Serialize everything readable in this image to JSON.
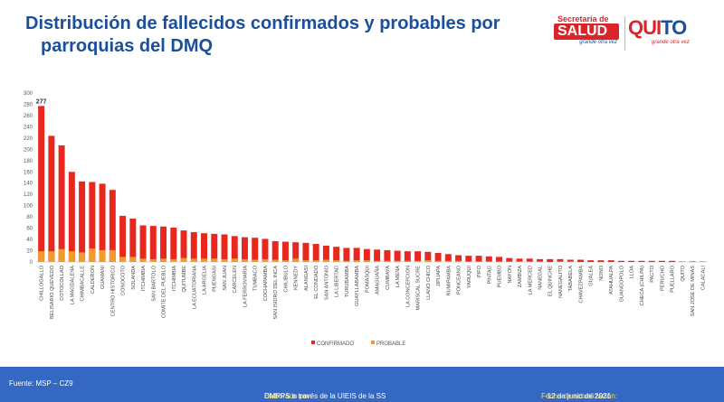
{
  "title_line1": "Distribución de fallecidos confirmados y probables por",
  "title_line2": "parroquias del DMQ",
  "logos": {
    "salud_small": "Secretaría de",
    "salud_big": "SALUD",
    "salud_tag": "grande otra vez",
    "quito_a": "QUI",
    "quito_b": "TO",
    "quito_tag": "grande otra vez"
  },
  "colors": {
    "confirmado": "#e8281e",
    "probable": "#f39a2b",
    "title": "#1b4f9c",
    "footer": "#3468c2"
  },
  "footer": {
    "source": "Fuente: MSP – CZ9",
    "elab_label": "Elaborado por:",
    "elab_value": "DMPPS  a través de la UIEIS  de la SS",
    "date_label": "Fecha de actualización:",
    "date_value": "12 de junio de 2021"
  },
  "chart_data": {
    "type": "bar",
    "ylim": [
      0,
      300
    ],
    "yticks": [
      0,
      20,
      40,
      60,
      80,
      100,
      120,
      140,
      160,
      180,
      200,
      220,
      240,
      260,
      280,
      300
    ],
    "grid": false,
    "legend_position": "bottom-center",
    "annotation": "277",
    "categories": [
      "CHILLOGALLO",
      "BELISARIO QUEVEDO",
      "COTOCOLLAO",
      "LA MAGDALENA",
      "CHIMBACALLE",
      "CALDERON",
      "GUAMANI",
      "CENTRO HISTORICO",
      "CONOCOTO",
      "SOLANDA",
      "ITCHIMBIA",
      "SAN BARTOLO",
      "COMITE DEL PUEBLO",
      "ITCHIMBIA",
      "QUITUMBE",
      "LA ECUATORIANA",
      "LA ARGELIA",
      "PUENGASI",
      "SAN JUAN",
      "CARCELEN",
      "LA FERROVIARIA",
      "TUMBACO",
      "COCHAPAMBA",
      "SAN ISIDRO DEL INCA",
      "CHILIBULO",
      "KENNEDY",
      "ALANGASI",
      "EL CONDADO",
      "SAN ANTONIO",
      "LA LIBERTAD",
      "TURUBAMBA",
      "GUAYLLABAMBA",
      "POMASQUI",
      "AMAGUAÑA",
      "CUMBAYA",
      "LA MENA",
      "LA CONCEPCION",
      "MARISCAL SUCRE",
      "LLANO CHICO",
      "JIPIJAPA",
      "RUMIPAMBA",
      "PONCEANO",
      "YARUQUI",
      "PIFO",
      "PINTAG",
      "PUEMBO",
      "NAYON",
      "ZAMBIZA",
      "LA MERCED",
      "NANEGAL",
      "EL QUINCHE",
      "NANEGALITO",
      "TABABELA",
      "CHAVEZPAMBA",
      "GUALEA",
      "NONO",
      "ATAHUALPA",
      "GUANGOPOLO",
      "LLOA",
      "CHECA (CHILPA)",
      "PACTO",
      "PERUCHO",
      "PUELLARO",
      "QUITO",
      "SAN JOSE DE MINAS",
      "CALACALI"
    ],
    "series": [
      {
        "name": "CONFIRMADO",
        "values": [
          277,
          224,
          207,
          160,
          143,
          142,
          139,
          128,
          82,
          77,
          65,
          64,
          63,
          61,
          56,
          53,
          51,
          50,
          49,
          46,
          44,
          43,
          41,
          37,
          36,
          35,
          34,
          32,
          29,
          27,
          25,
          25,
          23,
          22,
          21,
          20,
          19,
          19,
          18,
          16,
          14,
          12,
          11,
          11,
          10,
          9,
          7,
          6,
          6,
          5,
          5,
          5,
          4,
          4,
          3,
          3,
          3,
          2,
          2,
          2,
          2,
          2,
          2,
          1,
          1,
          1
        ]
      },
      {
        "name": "PROBABLE",
        "values": [
          19,
          19,
          23,
          19,
          17,
          24,
          21,
          21,
          9,
          9,
          6,
          5,
          6,
          5,
          7,
          6,
          6,
          6,
          5,
          6,
          5,
          4,
          5,
          4,
          3,
          6,
          3,
          3,
          4,
          3,
          2,
          3,
          3,
          2,
          2,
          2,
          2,
          2,
          3,
          2,
          2,
          2,
          1,
          1,
          1,
          1,
          1,
          1,
          1,
          1,
          0,
          1,
          1,
          0,
          0,
          0,
          0,
          0,
          0,
          0,
          0,
          0,
          0,
          1,
          0,
          1
        ]
      }
    ]
  }
}
